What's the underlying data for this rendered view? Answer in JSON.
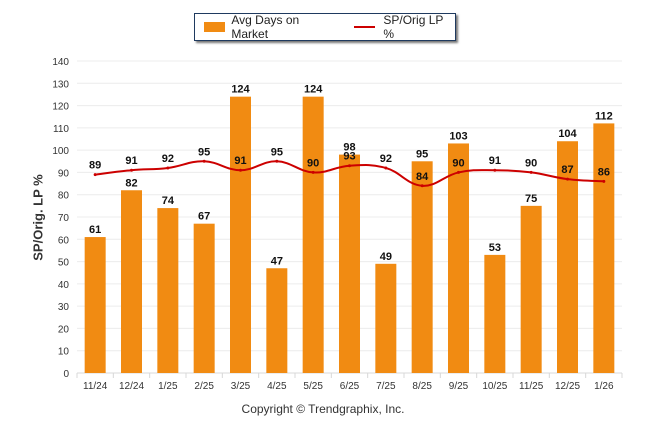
{
  "chart_data": {
    "type": "bar",
    "title": "",
    "xlabel": "",
    "ylabel": "SP/Orig. LP %",
    "ylim": [
      0,
      140
    ],
    "yticks": [
      0,
      10,
      20,
      30,
      40,
      50,
      60,
      70,
      80,
      90,
      100,
      110,
      120,
      130,
      140
    ],
    "grid": true,
    "legend_position": "top-center",
    "categories": [
      "11/24",
      "12/24",
      "1/25",
      "2/25",
      "3/25",
      "4/25",
      "5/25",
      "6/25",
      "7/25",
      "8/25",
      "9/25",
      "10/25",
      "11/25",
      "12/25",
      "1/26"
    ],
    "series": [
      {
        "name": "Avg Days on Market",
        "type": "bar",
        "color": "#f18b12",
        "values": [
          61,
          82,
          74,
          67,
          124,
          47,
          124,
          98,
          49,
          95,
          103,
          53,
          75,
          104,
          112
        ]
      },
      {
        "name": "SP/Orig LP %",
        "type": "line",
        "color": "#cc0000",
        "values": [
          89,
          91,
          92,
          95,
          91,
          95,
          90,
          93,
          92,
          84,
          90,
          91,
          90,
          87,
          86
        ]
      }
    ],
    "footer": "Copyright © Trendgraphix, Inc."
  }
}
